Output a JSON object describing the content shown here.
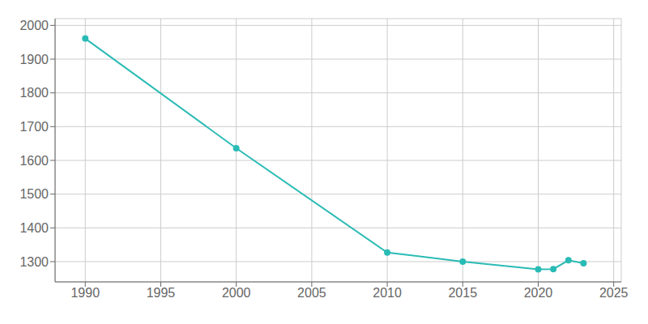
{
  "chart_data": {
    "type": "line",
    "x": [
      1990,
      2000,
      2010,
      2015,
      2020,
      2021,
      2022,
      2023
    ],
    "values": [
      1961,
      1636,
      1327,
      1300,
      1277,
      1278,
      1304,
      1295
    ],
    "color": "#2abbb5",
    "marker": "circle",
    "xlim": [
      1988,
      2025.5
    ],
    "ylim": [
      1240,
      2020
    ],
    "xticks": [
      1990,
      1995,
      2000,
      2005,
      2010,
      2015,
      2020,
      2025
    ],
    "yticks": [
      1300,
      1400,
      1500,
      1600,
      1700,
      1800,
      1900,
      2000
    ],
    "grid": true
  }
}
